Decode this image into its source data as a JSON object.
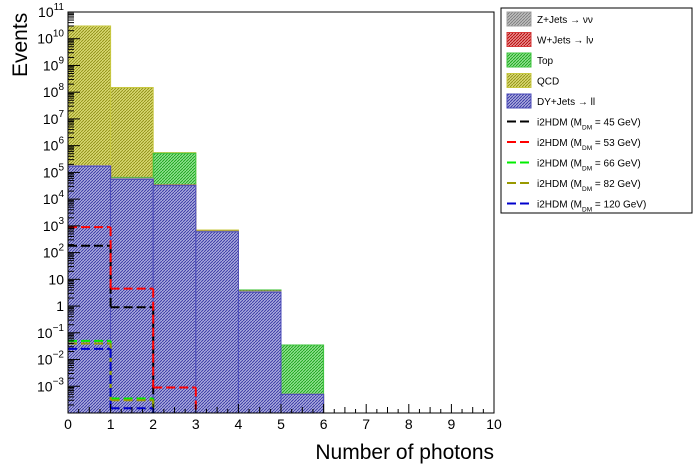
{
  "chart_data": {
    "type": "bar",
    "subtype": "stacked-histogram-with-overlays",
    "title": "",
    "xlabel": "Number of photons",
    "ylabel": "Events",
    "xlim": [
      0,
      10
    ],
    "ylim": [
      0.0001,
      100000000000
    ],
    "y_scale": "log",
    "x_ticks": [
      "0",
      "1",
      "2",
      "3",
      "4",
      "5",
      "6",
      "7",
      "8",
      "9",
      "10"
    ],
    "y_ticks": [
      {
        "value": 0.001,
        "base": "10",
        "exp": "−3"
      },
      {
        "value": 0.01,
        "base": "10",
        "exp": "−2"
      },
      {
        "value": 0.1,
        "base": "10",
        "exp": "−1"
      },
      {
        "value": 1,
        "base": "1",
        "exp": ""
      },
      {
        "value": 10,
        "base": "10",
        "exp": ""
      },
      {
        "value": 100,
        "base": "10",
        "exp": "2"
      },
      {
        "value": 1000,
        "base": "10",
        "exp": "3"
      },
      {
        "value": 10000,
        "base": "10",
        "exp": "4"
      },
      {
        "value": 100000,
        "base": "10",
        "exp": "5"
      },
      {
        "value": 1000000,
        "base": "10",
        "exp": "6"
      },
      {
        "value": 10000000,
        "base": "10",
        "exp": "7"
      },
      {
        "value": 100000000,
        "base": "10",
        "exp": "8"
      },
      {
        "value": 1000000000,
        "base": "10",
        "exp": "9"
      },
      {
        "value": 10000000000,
        "base": "10",
        "exp": "10"
      },
      {
        "value": 100000000000,
        "base": "10",
        "exp": "11"
      }
    ],
    "bins": [
      0,
      1,
      2,
      3,
      4,
      5,
      6,
      7,
      8,
      9,
      10
    ],
    "stack_totals": [
      {
        "name": "QCD",
        "color": "#c8c840",
        "values": [
          30000000000,
          150000000,
          550000,
          700,
          4,
          0,
          0,
          0,
          0,
          0
        ]
      },
      {
        "name": "Top",
        "color": "#3ec43e",
        "values": [
          180000,
          65000,
          520000,
          640,
          4,
          0.035,
          0,
          0,
          0,
          0
        ]
      },
      {
        "name": "W+Jets → lν",
        "color": "#d63a3a",
        "values": [
          180000,
          60000,
          34000,
          630,
          3.6,
          0.0005,
          0,
          0,
          0,
          0
        ]
      },
      {
        "name": "Z+Jets → νν",
        "color": "#a0a0a0",
        "values": [
          180000,
          60000,
          33000,
          620,
          3.5,
          0.0005,
          0,
          0,
          0,
          0
        ]
      },
      {
        "name": "DY+Jets → ll",
        "color": "#4a4ab8",
        "values": [
          170000,
          55000,
          32000,
          600,
          3.3,
          0.0005,
          0,
          0,
          0,
          0
        ]
      }
    ],
    "signals": [
      {
        "name": "i2HDM (M",
        "sub": "DM",
        "tail": " =  45 GeV)",
        "color": "#000000",
        "values": [
          180,
          0.9,
          0,
          0,
          0,
          0,
          0,
          0,
          0,
          0
        ]
      },
      {
        "name": "i2HDM (M",
        "sub": "DM",
        "tail": " =  53 GeV)",
        "color": "#ff0000",
        "values": [
          900,
          4.5,
          0.0009,
          0,
          0,
          0,
          0,
          0,
          0,
          0
        ]
      },
      {
        "name": "i2HDM (M",
        "sub": "DM",
        "tail": " =  66 GeV)",
        "color": "#00ee00",
        "values": [
          0.05,
          0.00035,
          0,
          0,
          0,
          0,
          0,
          0,
          0,
          0
        ]
      },
      {
        "name": "i2HDM (M",
        "sub": "DM",
        "tail": " =  82 GeV)",
        "color": "#999900",
        "values": [
          0.04,
          0.0003,
          0,
          0,
          0,
          0,
          0,
          0,
          0,
          0
        ]
      },
      {
        "name": "i2HDM (M",
        "sub": "DM",
        "tail": " = 120 GeV)",
        "color": "#0000cc",
        "values": [
          0.025,
          0.00015,
          0,
          0,
          0,
          0,
          0,
          0,
          0,
          0
        ]
      }
    ],
    "legend": {
      "placement": "top-right, outside plot",
      "entries": [
        {
          "label": "Z+Jets → νν",
          "kind": "fill",
          "color": "#a0a0a0"
        },
        {
          "label": "W+Jets → lν",
          "kind": "fill",
          "color": "#d63a3a"
        },
        {
          "label": "Top",
          "kind": "fill",
          "color": "#3ec43e"
        },
        {
          "label": "QCD",
          "kind": "fill",
          "color": "#c8c840"
        },
        {
          "label": "DY+Jets → ll",
          "kind": "fill",
          "color": "#4a4ab8"
        },
        {
          "label": "i2HDM (M",
          "sub": "DM",
          "tail": " =  45 GeV)",
          "kind": "line",
          "color": "#000000"
        },
        {
          "label": "i2HDM (M",
          "sub": "DM",
          "tail": " =  53 GeV)",
          "kind": "line",
          "color": "#ff0000"
        },
        {
          "label": "i2HDM (M",
          "sub": "DM",
          "tail": " =  66 GeV)",
          "kind": "line",
          "color": "#00ee00"
        },
        {
          "label": "i2HDM (M",
          "sub": "DM",
          "tail": " =  82 GeV)",
          "kind": "line",
          "color": "#999900"
        },
        {
          "label": "i2HDM (M",
          "sub": "DM",
          "tail": " = 120 GeV)",
          "kind": "line",
          "color": "#0000cc"
        }
      ]
    },
    "grid": false
  }
}
